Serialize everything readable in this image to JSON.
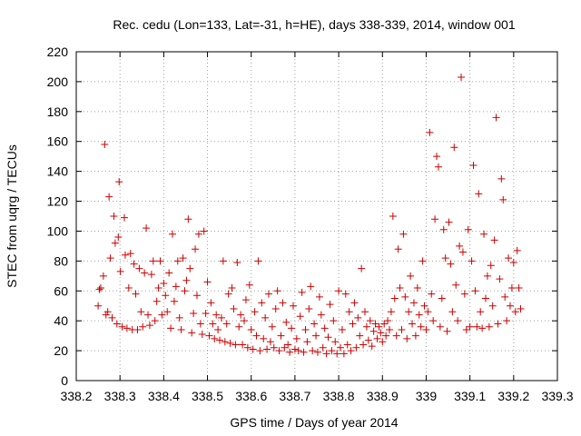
{
  "chart_data": {
    "type": "scatter",
    "title": "Rec. cedu (Lon=133, Lat=-31, h=HE), days 338-339, 2014, window 001",
    "xlabel": "GPS time / Days of year 2014",
    "ylabel": "STEC from uqrg / TECUs",
    "xlim": [
      338.2,
      339.3
    ],
    "ylim": [
      0,
      220
    ],
    "x_ticks": [
      "338.2",
      "338.3",
      "338.4",
      "338.5",
      "338.6",
      "338.7",
      "338.8",
      "338.9",
      "339",
      "339.1",
      "339.2",
      "339.3"
    ],
    "y_ticks": [
      "0",
      "20",
      "40",
      "60",
      "80",
      "100",
      "120",
      "140",
      "160",
      "180",
      "200",
      "220"
    ],
    "grid": true,
    "marker": "plus",
    "color": "#cc0000",
    "series": [
      {
        "points": [
          [
            338.25,
            50
          ],
          [
            338.253,
            61
          ],
          [
            338.256,
            62
          ],
          [
            338.262,
            70
          ],
          [
            338.265,
            158
          ],
          [
            338.268,
            44
          ],
          [
            338.272,
            46
          ],
          [
            338.275,
            123
          ],
          [
            338.278,
            82
          ],
          [
            338.282,
            42
          ],
          [
            338.286,
            110
          ],
          [
            338.289,
            92
          ],
          [
            338.293,
            38
          ],
          [
            338.296,
            96
          ],
          [
            338.298,
            133
          ],
          [
            338.301,
            73
          ],
          [
            338.305,
            36
          ],
          [
            338.31,
            109
          ],
          [
            338.312,
            84
          ],
          [
            338.316,
            35
          ],
          [
            338.32,
            62
          ],
          [
            338.324,
            85
          ],
          [
            338.328,
            34
          ],
          [
            338.332,
            78
          ],
          [
            338.336,
            58
          ],
          [
            338.34,
            34
          ],
          [
            338.344,
            75
          ],
          [
            338.348,
            46
          ],
          [
            338.352,
            36
          ],
          [
            338.356,
            72
          ],
          [
            338.36,
            102
          ],
          [
            338.364,
            44
          ],
          [
            338.368,
            37
          ],
          [
            338.372,
            71
          ],
          [
            338.376,
            80
          ],
          [
            338.38,
            40
          ],
          [
            338.384,
            53
          ],
          [
            338.388,
            62
          ],
          [
            338.392,
            80
          ],
          [
            338.396,
            44
          ],
          [
            338.4,
            65
          ],
          [
            338.404,
            57
          ],
          [
            338.408,
            46
          ],
          [
            338.412,
            72
          ],
          [
            338.416,
            35
          ],
          [
            338.42,
            98
          ],
          [
            338.424,
            53
          ],
          [
            338.428,
            63
          ],
          [
            338.432,
            80
          ],
          [
            338.436,
            42
          ],
          [
            338.44,
            34
          ],
          [
            338.444,
            82
          ],
          [
            338.448,
            60
          ],
          [
            338.452,
            67
          ],
          [
            338.456,
            108
          ],
          [
            338.46,
            75
          ],
          [
            338.464,
            32
          ],
          [
            338.468,
            45
          ],
          [
            338.472,
            88
          ],
          [
            338.476,
            57
          ],
          [
            338.48,
            98
          ],
          [
            338.484,
            38
          ],
          [
            338.488,
            31
          ],
          [
            338.492,
            100
          ],
          [
            338.496,
            45
          ],
          [
            338.5,
            66
          ],
          [
            338.504,
            30
          ],
          [
            338.508,
            52
          ],
          [
            338.512,
            38
          ],
          [
            338.516,
            28
          ],
          [
            338.52,
            44
          ],
          [
            338.524,
            34
          ],
          [
            338.528,
            27
          ],
          [
            338.532,
            42
          ],
          [
            338.536,
            80
          ],
          [
            338.54,
            26
          ],
          [
            338.544,
            38
          ],
          [
            338.548,
            58
          ],
          [
            338.552,
            25
          ],
          [
            338.556,
            62
          ],
          [
            338.56,
            48
          ],
          [
            338.564,
            24
          ],
          [
            338.568,
            79
          ],
          [
            338.572,
            36
          ],
          [
            338.576,
            44
          ],
          [
            338.58,
            24
          ],
          [
            338.584,
            40
          ],
          [
            338.588,
            54
          ],
          [
            338.592,
            22
          ],
          [
            338.596,
            64
          ],
          [
            338.6,
            34
          ],
          [
            338.604,
            21
          ],
          [
            338.608,
            46
          ],
          [
            338.612,
            30
          ],
          [
            338.616,
            80
          ],
          [
            338.62,
            20
          ],
          [
            338.624,
            52
          ],
          [
            338.628,
            28
          ],
          [
            338.632,
            42
          ],
          [
            338.636,
            21
          ],
          [
            338.64,
            58
          ],
          [
            338.644,
            26
          ],
          [
            338.648,
            36
          ],
          [
            338.652,
            22
          ],
          [
            338.656,
            48
          ],
          [
            338.66,
            60
          ],
          [
            338.664,
            20
          ],
          [
            338.668,
            30
          ],
          [
            338.672,
            52
          ],
          [
            338.676,
            22
          ],
          [
            338.68,
            39
          ],
          [
            338.684,
            24
          ],
          [
            338.688,
            19
          ],
          [
            338.692,
            35
          ],
          [
            338.696,
            50
          ],
          [
            338.7,
            21
          ],
          [
            338.704,
            28
          ],
          [
            338.708,
            20
          ],
          [
            338.712,
            43
          ],
          [
            338.716,
            59
          ],
          [
            338.72,
            19
          ],
          [
            338.724,
            34
          ],
          [
            338.728,
            26
          ],
          [
            338.732,
            48
          ],
          [
            338.736,
            63
          ],
          [
            338.74,
            20
          ],
          [
            338.744,
            38
          ],
          [
            338.748,
            30
          ],
          [
            338.752,
            19
          ],
          [
            338.756,
            56
          ],
          [
            338.76,
            44
          ],
          [
            338.764,
            22
          ],
          [
            338.768,
            35
          ],
          [
            338.772,
            18
          ],
          [
            338.776,
            29
          ],
          [
            338.78,
            51
          ],
          [
            338.784,
            20
          ],
          [
            338.788,
            40
          ],
          [
            338.792,
            26
          ],
          [
            338.796,
            18
          ],
          [
            338.8,
            60
          ],
          [
            338.804,
            22
          ],
          [
            338.808,
            34
          ],
          [
            338.812,
            18
          ],
          [
            338.816,
            58
          ],
          [
            338.82,
            24
          ],
          [
            338.824,
            46
          ],
          [
            338.828,
            20
          ],
          [
            338.832,
            38
          ],
          [
            338.836,
            52
          ],
          [
            338.84,
            22
          ],
          [
            338.844,
            42
          ],
          [
            338.848,
            30
          ],
          [
            338.852,
            75
          ],
          [
            338.856,
            24
          ],
          [
            338.86,
            46
          ],
          [
            338.864,
            36
          ],
          [
            338.868,
            27
          ],
          [
            338.872,
            40
          ],
          [
            338.876,
            23
          ],
          [
            338.88,
            33
          ],
          [
            338.884,
            38
          ],
          [
            338.888,
            28
          ],
          [
            338.892,
            36
          ],
          [
            338.896,
            32
          ],
          [
            338.9,
            26
          ],
          [
            338.904,
            38
          ],
          [
            338.908,
            30
          ],
          [
            338.912,
            40
          ],
          [
            338.916,
            34
          ],
          [
            338.92,
            46
          ],
          [
            338.924,
            110
          ],
          [
            338.928,
            55
          ],
          [
            338.932,
            30
          ],
          [
            338.936,
            88
          ],
          [
            338.94,
            62
          ],
          [
            338.944,
            34
          ],
          [
            338.948,
            98
          ],
          [
            338.952,
            56
          ],
          [
            338.956,
            28
          ],
          [
            338.96,
            46
          ],
          [
            338.964,
            70
          ],
          [
            338.968,
            38
          ],
          [
            338.972,
            52
          ],
          [
            338.976,
            30
          ],
          [
            338.98,
            62
          ],
          [
            338.984,
            44
          ],
          [
            338.988,
            36
          ],
          [
            338.992,
            80
          ],
          [
            338.996,
            50
          ],
          [
            339.0,
            34
          ],
          [
            339.004,
            46
          ],
          [
            339.008,
            166
          ],
          [
            339.012,
            58
          ],
          [
            339.016,
            40
          ],
          [
            339.02,
            108
          ],
          [
            339.024,
            150
          ],
          [
            339.028,
            143
          ],
          [
            339.032,
            36
          ],
          [
            339.036,
            55
          ],
          [
            339.04,
            101
          ],
          [
            339.044,
            82
          ],
          [
            339.048,
            33
          ],
          [
            339.052,
            106
          ],
          [
            339.056,
            78
          ],
          [
            339.06,
            46
          ],
          [
            339.064,
            156
          ],
          [
            339.068,
            64
          ],
          [
            339.072,
            40
          ],
          [
            339.076,
            90
          ],
          [
            339.08,
            203
          ],
          [
            339.084,
            86
          ],
          [
            339.088,
            58
          ],
          [
            339.092,
            34
          ],
          [
            339.096,
            101
          ],
          [
            339.1,
            36
          ],
          [
            339.104,
            80
          ],
          [
            339.108,
            144
          ],
          [
            339.112,
            60
          ],
          [
            339.116,
            36
          ],
          [
            339.12,
            125
          ],
          [
            339.124,
            46
          ],
          [
            339.128,
            35
          ],
          [
            339.132,
            98
          ],
          [
            339.136,
            55
          ],
          [
            339.14,
            70
          ],
          [
            339.144,
            36
          ],
          [
            339.148,
            77
          ],
          [
            339.152,
            50
          ],
          [
            339.156,
            94
          ],
          [
            339.16,
            176
          ],
          [
            339.164,
            38
          ],
          [
            339.168,
            68
          ],
          [
            339.172,
            135
          ],
          [
            339.176,
            121
          ],
          [
            339.18,
            56
          ],
          [
            339.184,
            40
          ],
          [
            339.188,
            82
          ],
          [
            339.192,
            50
          ],
          [
            339.196,
            62
          ],
          [
            339.2,
            79
          ],
          [
            339.204,
            46
          ],
          [
            339.208,
            87
          ],
          [
            339.212,
            62
          ],
          [
            339.216,
            48
          ]
        ]
      }
    ]
  }
}
